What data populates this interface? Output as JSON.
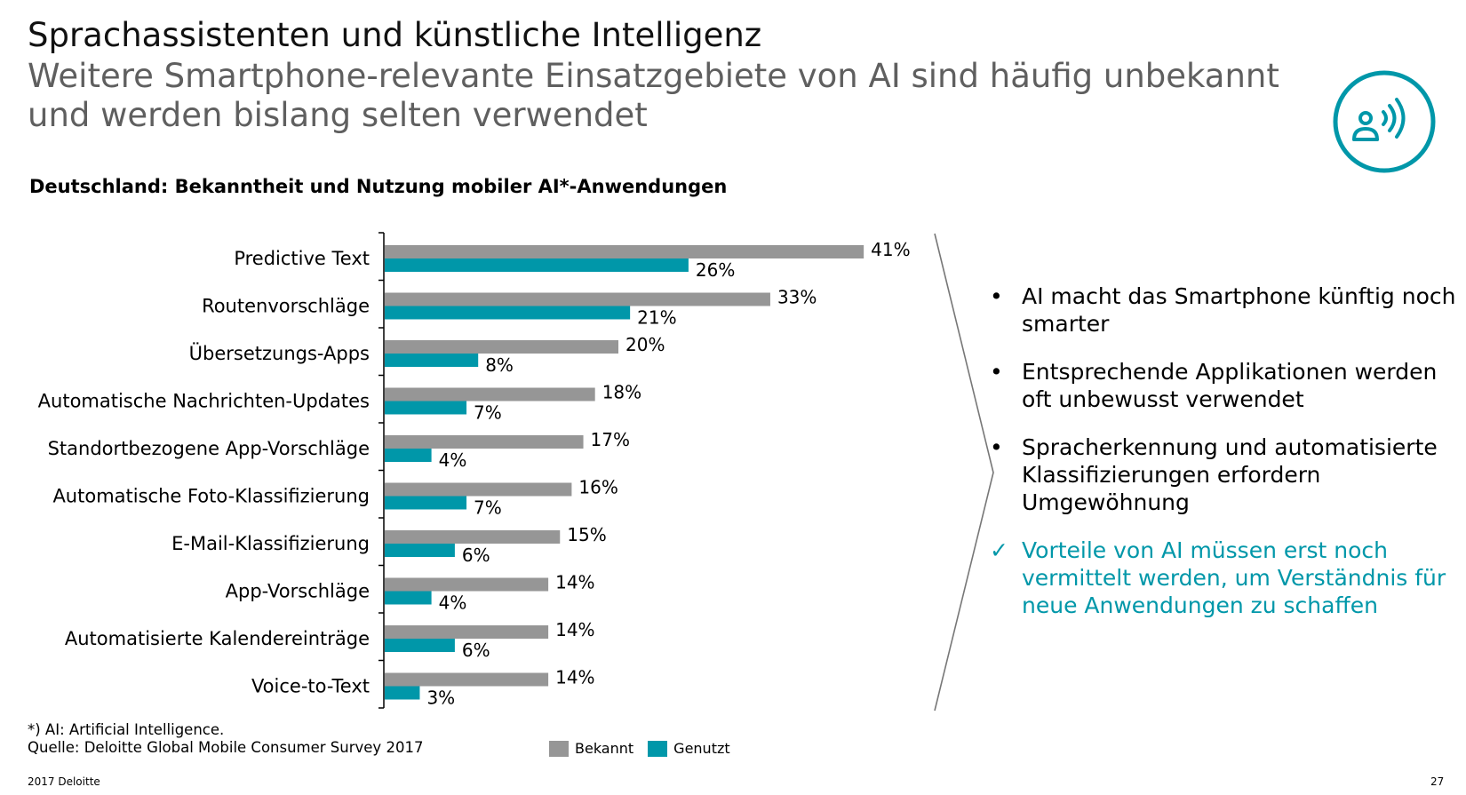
{
  "title": "Sprachassistenten und künstliche Intelligenz",
  "subtitle": "Weitere Smartphone-relevante Einsatzgebiete von AI sind häufig unbekannt und werden bislang selten verwendet",
  "chart_heading": "Deutschland: Bekanntheit und Nutzung mobiler AI*-Anwendungen",
  "colors": {
    "bekannt": "#969696",
    "genutzt": "#0097a9",
    "accent": "#0097a9"
  },
  "chart_data": {
    "type": "bar",
    "orientation": "horizontal",
    "title": "Deutschland: Bekanntheit und Nutzung mobiler AI*-Anwendungen",
    "categories": [
      "Predictive Text",
      "Routenvorschläge",
      "Übersetzungs-Apps",
      "Automatische Nachrichten-Updates",
      "Standortbezogene App-Vorschläge",
      "Automatische Foto-Klassifizierung",
      "E-Mail-Klassifizierung",
      "App-Vorschläge",
      "Automatisierte Kalendereinträge",
      "Voice-to-Text"
    ],
    "series": [
      {
        "name": "Bekannt",
        "values": [
          41,
          33,
          20,
          18,
          17,
          16,
          15,
          14,
          14,
          14
        ]
      },
      {
        "name": "Genutzt",
        "values": [
          26,
          21,
          8,
          7,
          4,
          7,
          6,
          4,
          6,
          3
        ]
      }
    ],
    "value_suffix": "%",
    "xlim": [
      0,
      45
    ],
    "legend_position": "bottom",
    "grid": false
  },
  "bullets": [
    {
      "marker": "•",
      "text": "AI macht das Smartphone künftig noch smarter"
    },
    {
      "marker": "•",
      "text": "Entsprechende Applikationen werden oft unbewusst verwendet"
    },
    {
      "marker": "•",
      "text": "Spracherkennung und automatisierte Klassifizierungen erfordern Umgewöhnung"
    }
  ],
  "conclusion": {
    "marker": "✓",
    "text": "Vorteile von AI müssen erst noch vermittelt werden, um Verständnis für neue Anwendungen zu schaffen"
  },
  "footnote": {
    "line1": "*) AI: Artificial Intelligence.",
    "line2": "Quelle: Deloitte Global Mobile Consumer Survey 2017"
  },
  "legend": {
    "bekannt": "Bekannt",
    "genutzt": "Genutzt"
  },
  "footer": {
    "left": "2017 Deloitte",
    "page_number": "27"
  },
  "logo_icon": "voice-assistant-icon"
}
